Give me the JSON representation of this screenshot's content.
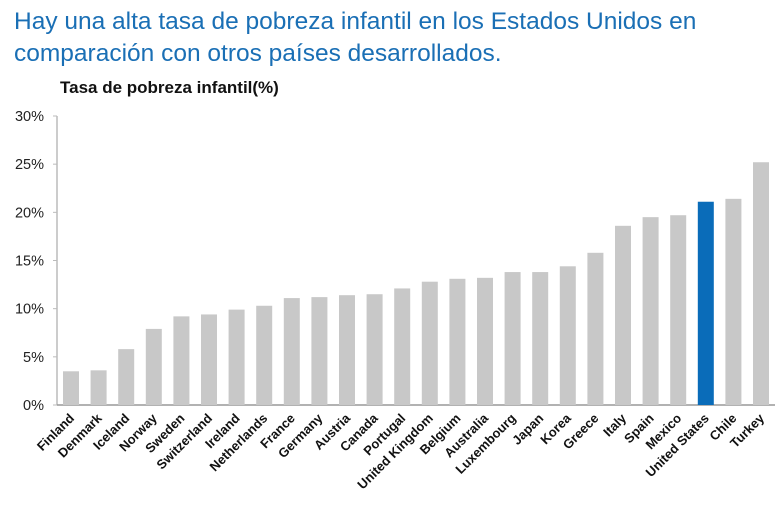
{
  "chart_data": {
    "type": "bar",
    "title": "Hay una alta tasa de pobreza infantil en los Estados Unidos en comparación con otros países desarrollados.",
    "ylabel": "Tasa de pobreza infantil(%)",
    "xlabel": "",
    "ylim": [
      0,
      30
    ],
    "yticks": [
      "0%",
      "5%",
      "10%",
      "15%",
      "20%",
      "25%",
      "30%"
    ],
    "grid": false,
    "categories": [
      "Finland",
      "Denmark",
      "Iceland",
      "Norway",
      "Sweden",
      "Switzerland",
      "Ireland",
      "Netherlands",
      "France",
      "Germany",
      "Austria",
      "Canada",
      "Portugal",
      "United Kingdom",
      "Belgium",
      "Australia",
      "Luxembourg",
      "Japan",
      "Korea",
      "Greece",
      "Italy",
      "Spain",
      "Mexico",
      "United States",
      "Chile",
      "Turkey"
    ],
    "values": [
      3.5,
      3.6,
      5.8,
      7.9,
      9.2,
      9.4,
      9.9,
      10.3,
      11.1,
      11.2,
      11.4,
      11.5,
      12.1,
      12.8,
      13.1,
      13.2,
      13.8,
      13.8,
      14.4,
      15.8,
      18.6,
      19.5,
      19.7,
      21.1,
      21.4,
      25.2
    ],
    "highlight": "United States",
    "colors": {
      "default": "#c8c8c8",
      "highlight": "#0a6cb9",
      "title": "#1a6fb5"
    }
  }
}
